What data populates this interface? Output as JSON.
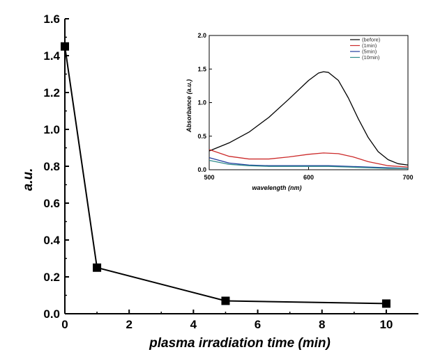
{
  "chart_data": [
    {
      "type": "line",
      "title": "",
      "xlabel": "plasma irradiation time (min)",
      "ylabel": "a.u.",
      "xlim": [
        0,
        11
      ],
      "ylim": [
        0.0,
        1.6
      ],
      "xticks": [
        0,
        2,
        4,
        6,
        8,
        10
      ],
      "yticks": [
        0.0,
        0.2,
        0.4,
        0.6,
        0.8,
        1.0,
        1.2,
        1.4,
        1.6
      ],
      "xtick_labels": [
        "0",
        "2",
        "4",
        "6",
        "8",
        "10"
      ],
      "ytick_labels": [
        "0.0",
        "0.2",
        "0.4",
        "0.6",
        "0.8",
        "1.0",
        "1.2",
        "1.4",
        "1.6"
      ],
      "grid": false,
      "marker": "square",
      "series": [
        {
          "x": [
            0,
            1,
            5,
            10
          ],
          "y": [
            1.45,
            0.25,
            0.07,
            0.055
          ],
          "color": "#000000"
        }
      ]
    },
    {
      "type": "line",
      "title": "",
      "xlabel": "wavelength (nm)",
      "ylabel": "Absorbance (a.u.)",
      "xlim": [
        500,
        700
      ],
      "ylim": [
        0.0,
        2.0
      ],
      "xticks": [
        500,
        600,
        700
      ],
      "yticks": [
        0.0,
        0.5,
        1.0,
        1.5,
        2.0
      ],
      "xtick_labels": [
        "500",
        "600",
        "700"
      ],
      "ytick_labels": [
        "0.0",
        "0.5",
        "1.0",
        "1.5",
        "2.0"
      ],
      "grid": false,
      "legend": "top-right",
      "series": [
        {
          "name": "(before)",
          "color": "#000000",
          "x": [
            500,
            520,
            540,
            560,
            580,
            600,
            610,
            615,
            620,
            630,
            640,
            650,
            660,
            670,
            680,
            690,
            700
          ],
          "y": [
            0.28,
            0.4,
            0.56,
            0.78,
            1.05,
            1.33,
            1.44,
            1.46,
            1.45,
            1.33,
            1.07,
            0.76,
            0.48,
            0.27,
            0.15,
            0.09,
            0.07
          ]
        },
        {
          "name": "(1min)",
          "color": "#cc2a2a",
          "x": [
            500,
            520,
            540,
            560,
            580,
            600,
            615,
            630,
            645,
            660,
            680,
            700
          ],
          "y": [
            0.3,
            0.2,
            0.16,
            0.16,
            0.19,
            0.23,
            0.25,
            0.24,
            0.19,
            0.12,
            0.06,
            0.04
          ]
        },
        {
          "name": "(5min)",
          "color": "#1f3c9e",
          "x": [
            500,
            520,
            540,
            560,
            580,
            600,
            620,
            640,
            660,
            680,
            700
          ],
          "y": [
            0.18,
            0.1,
            0.07,
            0.06,
            0.06,
            0.06,
            0.06,
            0.05,
            0.04,
            0.03,
            0.02
          ]
        },
        {
          "name": "(10min)",
          "color": "#2e8b8b",
          "x": [
            500,
            520,
            540,
            560,
            580,
            600,
            620,
            640,
            660,
            680,
            700
          ],
          "y": [
            0.14,
            0.08,
            0.06,
            0.05,
            0.05,
            0.05,
            0.05,
            0.04,
            0.03,
            0.02,
            0.02
          ]
        }
      ]
    }
  ]
}
